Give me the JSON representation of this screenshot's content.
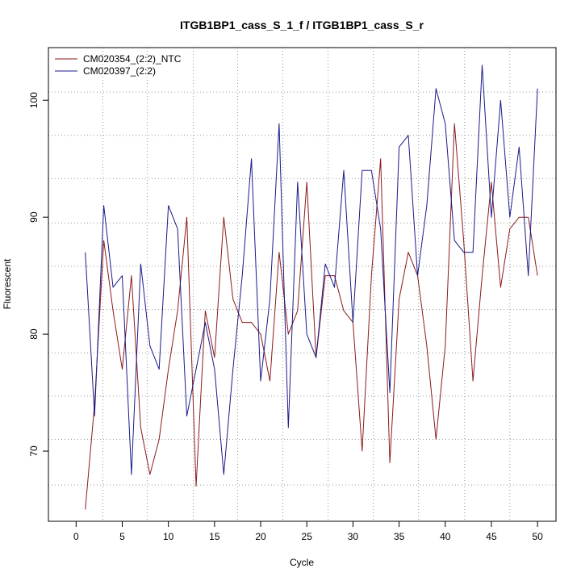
{
  "chart_data": {
    "type": "line",
    "title": "ITGB1BP1_cass_S_1_f / ITGB1BP1_cass_S_r",
    "xlabel": "Cycle",
    "ylabel": "Fluorescent",
    "xlim": [
      -3,
      52
    ],
    "ylim": [
      64,
      104.5
    ],
    "xticks": [
      0,
      5,
      10,
      15,
      20,
      25,
      30,
      35,
      40,
      45,
      50
    ],
    "yticks": [
      70,
      80,
      90,
      100
    ],
    "x_grid": [
      2.9,
      7.7,
      12.7,
      17.5,
      22.4,
      27.3,
      32.2,
      37.1,
      42.1,
      47.0
    ],
    "y_grid": [
      67.1,
      71.0,
      74.7,
      78.4,
      82.1,
      85.8,
      89.5,
      93.3,
      97.0,
      100.7
    ],
    "legend_position": "top-left",
    "x": [
      1,
      2,
      3,
      4,
      5,
      6,
      7,
      8,
      9,
      10,
      11,
      12,
      13,
      14,
      15,
      16,
      17,
      18,
      19,
      20,
      21,
      22,
      23,
      24,
      25,
      26,
      27,
      28,
      29,
      30,
      31,
      32,
      33,
      34,
      35,
      36,
      37,
      38,
      39,
      40,
      41,
      42,
      43,
      44,
      45,
      46,
      47,
      48,
      49,
      50
    ],
    "series": [
      {
        "name": "CM020354_(2:2)_NTC",
        "color": "#8b1a1a",
        "values": [
          65,
          74,
          88,
          82,
          77,
          85,
          72,
          68,
          71,
          77,
          82,
          90,
          67,
          82,
          78,
          90,
          83,
          81,
          81,
          80,
          76,
          87,
          80,
          82,
          93,
          78,
          85,
          85,
          82,
          81,
          70,
          85,
          95,
          69,
          83,
          87,
          85,
          79,
          71,
          79,
          98,
          88,
          76,
          85,
          93,
          84,
          89,
          90,
          90,
          85
        ]
      },
      {
        "name": "CM020397_(2:2)",
        "color": "#1a1a8b",
        "values": [
          87,
          73,
          91,
          84,
          85,
          68,
          86,
          79,
          77,
          91,
          89,
          73,
          77,
          81,
          77,
          68,
          77,
          85,
          95,
          76,
          83,
          98,
          72,
          93,
          80,
          78,
          86,
          84,
          94,
          81,
          94,
          94,
          89,
          75,
          96,
          97,
          85,
          91,
          101,
          98,
          88,
          87,
          87,
          103,
          90,
          100,
          90,
          96,
          85,
          101
        ]
      }
    ]
  }
}
